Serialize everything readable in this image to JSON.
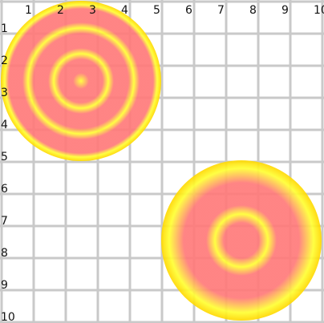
{
  "board": {
    "columns": [
      "1",
      "2",
      "3",
      "4",
      "5",
      "6",
      "7",
      "8",
      "9",
      "10"
    ],
    "rows": [
      "1",
      "2",
      "3",
      "4",
      "5",
      "6",
      "7",
      "8",
      "9",
      "10"
    ],
    "colors": {
      "background": "#ffffff",
      "grid": "#c9c9c9",
      "label": "#111111"
    }
  },
  "targets": [
    {
      "name": "target-top-left",
      "rings": 3,
      "colors": {
        "rim": "#ffd700",
        "center": "#ff7a7a",
        "ring": "#ffff33"
      }
    },
    {
      "name": "target-bottom-right",
      "rings": 2,
      "colors": {
        "rim": "#ffd700",
        "center": "#ff7a7a",
        "ring": "#ffff33"
      }
    }
  ]
}
